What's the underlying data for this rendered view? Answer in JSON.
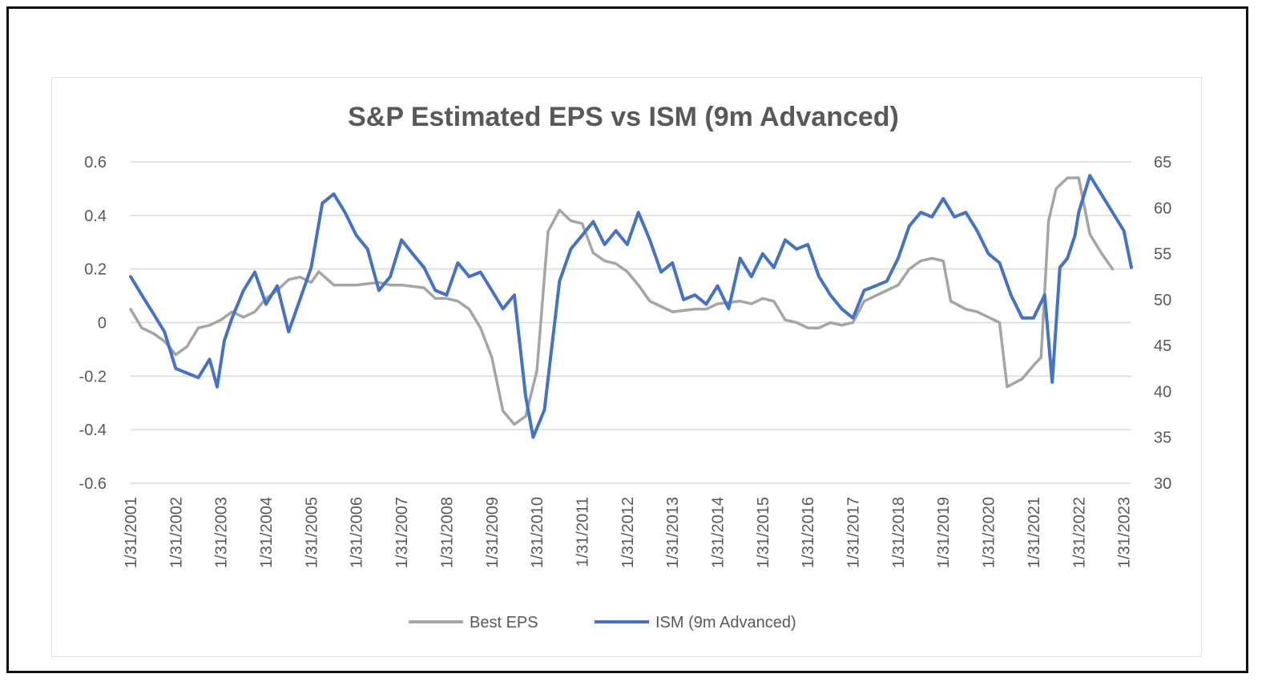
{
  "chart_data": {
    "type": "line",
    "title": "S&P Estimated EPS vs ISM (9m Advanced)",
    "x_tick_labels": [
      "1/31/2001",
      "1/31/2002",
      "1/31/2003",
      "1/31/2004",
      "1/31/2005",
      "1/31/2006",
      "1/31/2007",
      "1/31/2008",
      "1/31/2009",
      "1/31/2010",
      "1/31/2011",
      "1/31/2012",
      "1/31/2013",
      "1/31/2014",
      "1/31/2015",
      "1/31/2016",
      "1/31/2017",
      "1/31/2018",
      "1/31/2019",
      "1/31/2020",
      "1/31/2021",
      "1/31/2022",
      "1/31/2023"
    ],
    "xlim": [
      "2001-01-31",
      "2023-03-31"
    ],
    "y_left": {
      "ylim": [
        -0.6,
        0.6
      ],
      "ticks": [
        0.6,
        0.4,
        0.2,
        0,
        -0.2,
        -0.4,
        -0.6
      ],
      "tick_labels": [
        "0.6",
        "0.4",
        "0.2",
        "0",
        "-0.2",
        "-0.4",
        "-0.6"
      ]
    },
    "y_right": {
      "ylim": [
        30,
        65
      ],
      "ticks": [
        65,
        60,
        55,
        50,
        45,
        40,
        35,
        30
      ],
      "tick_labels": [
        "65",
        "60",
        "55",
        "50",
        "45",
        "40",
        "35",
        "30"
      ]
    },
    "grid": "horizontal",
    "legend_position": "bottom",
    "series": [
      {
        "name": "Best EPS",
        "axis": "left",
        "color": "#a5a5a5",
        "points": [
          [
            "2001-01-31",
            0.05
          ],
          [
            "2001-04-30",
            -0.02
          ],
          [
            "2001-07-31",
            -0.04
          ],
          [
            "2001-10-31",
            -0.07
          ],
          [
            "2002-01-31",
            -0.12
          ],
          [
            "2002-04-30",
            -0.09
          ],
          [
            "2002-07-31",
            -0.02
          ],
          [
            "2002-10-31",
            -0.01
          ],
          [
            "2003-01-31",
            0.01
          ],
          [
            "2003-04-30",
            0.04
          ],
          [
            "2003-07-31",
            0.02
          ],
          [
            "2003-10-31",
            0.04
          ],
          [
            "2004-01-31",
            0.09
          ],
          [
            "2004-04-30",
            0.12
          ],
          [
            "2004-07-31",
            0.16
          ],
          [
            "2004-10-31",
            0.17
          ],
          [
            "2005-01-31",
            0.15
          ],
          [
            "2005-03-31",
            0.19
          ],
          [
            "2005-07-31",
            0.14
          ],
          [
            "2005-10-31",
            0.14
          ],
          [
            "2006-01-31",
            0.14
          ],
          [
            "2006-07-31",
            0.15
          ],
          [
            "2006-10-31",
            0.14
          ],
          [
            "2007-01-31",
            0.14
          ],
          [
            "2007-07-31",
            0.13
          ],
          [
            "2007-10-31",
            0.09
          ],
          [
            "2008-01-31",
            0.09
          ],
          [
            "2008-04-30",
            0.08
          ],
          [
            "2008-07-31",
            0.05
          ],
          [
            "2008-10-31",
            -0.02
          ],
          [
            "2009-01-31",
            -0.13
          ],
          [
            "2009-04-30",
            -0.33
          ],
          [
            "2009-07-31",
            -0.38
          ],
          [
            "2009-10-31",
            -0.35
          ],
          [
            "2010-01-31",
            -0.18
          ],
          [
            "2010-04-30",
            0.34
          ],
          [
            "2010-07-31",
            0.42
          ],
          [
            "2010-10-31",
            0.38
          ],
          [
            "2011-01-31",
            0.37
          ],
          [
            "2011-04-30",
            0.26
          ],
          [
            "2011-07-31",
            0.23
          ],
          [
            "2011-10-31",
            0.22
          ],
          [
            "2012-01-31",
            0.19
          ],
          [
            "2012-04-30",
            0.14
          ],
          [
            "2012-07-31",
            0.08
          ],
          [
            "2012-10-31",
            0.06
          ],
          [
            "2013-01-31",
            0.04
          ],
          [
            "2013-07-31",
            0.05
          ],
          [
            "2013-10-31",
            0.05
          ],
          [
            "2014-01-31",
            0.07
          ],
          [
            "2014-07-31",
            0.08
          ],
          [
            "2014-10-31",
            0.07
          ],
          [
            "2015-01-31",
            0.09
          ],
          [
            "2015-04-30",
            0.08
          ],
          [
            "2015-07-31",
            0.01
          ],
          [
            "2015-10-31",
            0.0
          ],
          [
            "2016-01-31",
            -0.02
          ],
          [
            "2016-04-30",
            -0.02
          ],
          [
            "2016-07-31",
            0.0
          ],
          [
            "2016-10-31",
            -0.01
          ],
          [
            "2017-01-31",
            0.0
          ],
          [
            "2017-04-30",
            0.08
          ],
          [
            "2017-07-31",
            0.1
          ],
          [
            "2017-10-31",
            0.12
          ],
          [
            "2018-01-31",
            0.14
          ],
          [
            "2018-04-30",
            0.2
          ],
          [
            "2018-07-31",
            0.23
          ],
          [
            "2018-10-31",
            0.24
          ],
          [
            "2019-01-31",
            0.23
          ],
          [
            "2019-03-31",
            0.08
          ],
          [
            "2019-07-31",
            0.05
          ],
          [
            "2019-10-31",
            0.04
          ],
          [
            "2020-01-31",
            0.02
          ],
          [
            "2020-04-30",
            0.0
          ],
          [
            "2020-06-30",
            -0.24
          ],
          [
            "2020-10-31",
            -0.21
          ],
          [
            "2021-01-31",
            -0.16
          ],
          [
            "2021-03-31",
            -0.13
          ],
          [
            "2021-05-31",
            0.38
          ],
          [
            "2021-07-31",
            0.5
          ],
          [
            "2021-10-31",
            0.54
          ],
          [
            "2022-01-31",
            0.54
          ],
          [
            "2022-04-30",
            0.33
          ],
          [
            "2022-07-31",
            0.26
          ],
          [
            "2022-10-31",
            0.2
          ]
        ]
      },
      {
        "name": "ISM (9m Advanced)",
        "axis": "right",
        "color": "#4472c4",
        "points": [
          [
            "2001-01-31",
            52.5
          ],
          [
            "2001-04-30",
            50.5
          ],
          [
            "2001-07-31",
            48.5
          ],
          [
            "2001-10-31",
            46.5
          ],
          [
            "2002-01-31",
            42.5
          ],
          [
            "2002-04-30",
            42.0
          ],
          [
            "2002-07-31",
            41.5
          ],
          [
            "2002-10-31",
            43.5
          ],
          [
            "2002-12-31",
            40.5
          ],
          [
            "2003-02-28",
            45.5
          ],
          [
            "2003-04-30",
            48.0
          ],
          [
            "2003-07-31",
            51.0
          ],
          [
            "2003-10-31",
            53.0
          ],
          [
            "2004-01-31",
            49.5
          ],
          [
            "2004-04-30",
            51.5
          ],
          [
            "2004-07-31",
            46.5
          ],
          [
            "2004-10-31",
            50.0
          ],
          [
            "2005-01-31",
            53.5
          ],
          [
            "2005-04-30",
            60.5
          ],
          [
            "2005-07-31",
            61.5
          ],
          [
            "2005-10-31",
            59.5
          ],
          [
            "2006-01-31",
            57.0
          ],
          [
            "2006-04-30",
            55.5
          ],
          [
            "2006-07-31",
            51.0
          ],
          [
            "2006-10-31",
            52.5
          ],
          [
            "2007-01-31",
            56.5
          ],
          [
            "2007-04-30",
            55.0
          ],
          [
            "2007-07-31",
            53.5
          ],
          [
            "2007-10-31",
            51.0
          ],
          [
            "2008-01-31",
            50.5
          ],
          [
            "2008-04-30",
            54.0
          ],
          [
            "2008-07-31",
            52.5
          ],
          [
            "2008-10-31",
            53.0
          ],
          [
            "2009-01-31",
            51.0
          ],
          [
            "2009-04-30",
            49.0
          ],
          [
            "2009-07-31",
            50.5
          ],
          [
            "2009-10-31",
            39.5
          ],
          [
            "2009-12-31",
            35.0
          ],
          [
            "2010-03-31",
            38.0
          ],
          [
            "2010-07-31",
            52.0
          ],
          [
            "2010-10-31",
            55.5
          ],
          [
            "2011-01-31",
            57.0
          ],
          [
            "2011-04-30",
            58.5
          ],
          [
            "2011-07-31",
            56.0
          ],
          [
            "2011-10-31",
            57.5
          ],
          [
            "2012-01-31",
            56.0
          ],
          [
            "2012-04-30",
            59.5
          ],
          [
            "2012-07-31",
            56.5
          ],
          [
            "2012-10-31",
            53.0
          ],
          [
            "2013-01-31",
            54.0
          ],
          [
            "2013-04-30",
            50.0
          ],
          [
            "2013-07-31",
            50.5
          ],
          [
            "2013-10-31",
            49.5
          ],
          [
            "2014-01-31",
            51.5
          ],
          [
            "2014-04-30",
            49.0
          ],
          [
            "2014-07-31",
            54.5
          ],
          [
            "2014-10-31",
            52.5
          ],
          [
            "2015-01-31",
            55.0
          ],
          [
            "2015-04-30",
            53.5
          ],
          [
            "2015-07-31",
            56.5
          ],
          [
            "2015-10-31",
            55.5
          ],
          [
            "2016-01-31",
            56.0
          ],
          [
            "2016-04-30",
            52.5
          ],
          [
            "2016-07-31",
            50.5
          ],
          [
            "2016-10-31",
            49.0
          ],
          [
            "2017-01-31",
            48.0
          ],
          [
            "2017-04-30",
            51.0
          ],
          [
            "2017-07-31",
            51.5
          ],
          [
            "2017-10-31",
            52.0
          ],
          [
            "2018-01-31",
            54.5
          ],
          [
            "2018-04-30",
            58.0
          ],
          [
            "2018-07-31",
            59.5
          ],
          [
            "2018-10-31",
            59.0
          ],
          [
            "2019-01-31",
            61.0
          ],
          [
            "2019-04-30",
            59.0
          ],
          [
            "2019-07-31",
            59.5
          ],
          [
            "2019-10-31",
            57.5
          ],
          [
            "2020-01-31",
            55.0
          ],
          [
            "2020-04-30",
            54.0
          ],
          [
            "2020-07-31",
            50.5
          ],
          [
            "2020-10-31",
            48.0
          ],
          [
            "2021-01-31",
            48.0
          ],
          [
            "2021-04-30",
            50.5
          ],
          [
            "2021-06-30",
            41.0
          ],
          [
            "2021-08-31",
            53.5
          ],
          [
            "2021-10-31",
            54.5
          ],
          [
            "2021-12-31",
            57.0
          ],
          [
            "2022-01-31",
            59.5
          ],
          [
            "2022-04-30",
            63.5
          ],
          [
            "2022-07-31",
            61.5
          ],
          [
            "2022-10-31",
            59.5
          ],
          [
            "2023-01-31",
            57.5
          ],
          [
            "2023-03-31",
            53.5
          ]
        ]
      }
    ]
  }
}
